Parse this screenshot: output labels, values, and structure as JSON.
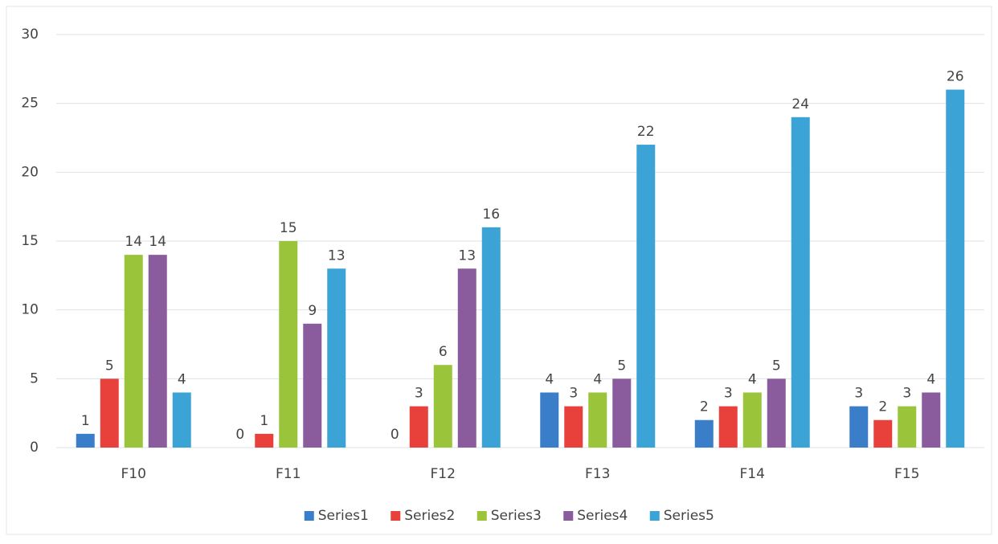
{
  "chart_data": {
    "type": "bar",
    "categories": [
      "F10",
      "F11",
      "F12",
      "F13",
      "F14",
      "F15"
    ],
    "series": [
      {
        "name": "Series1",
        "color": "#3a7dc9",
        "values": [
          1,
          0,
          0,
          4,
          2,
          3
        ]
      },
      {
        "name": "Series2",
        "color": "#e8413b",
        "values": [
          5,
          1,
          3,
          3,
          3,
          2
        ]
      },
      {
        "name": "Series3",
        "color": "#9ac53a",
        "values": [
          14,
          15,
          6,
          4,
          4,
          3
        ]
      },
      {
        "name": "Series4",
        "color": "#8a5c9e",
        "values": [
          14,
          9,
          13,
          5,
          5,
          4
        ]
      },
      {
        "name": "Series5",
        "color": "#3ba3d6",
        "values": [
          4,
          13,
          16,
          22,
          24,
          26
        ]
      }
    ],
    "ylim": [
      0,
      30
    ],
    "yticks": [
      0,
      5,
      10,
      15,
      20,
      25,
      30
    ],
    "grid": true,
    "legend": "bottom"
  }
}
